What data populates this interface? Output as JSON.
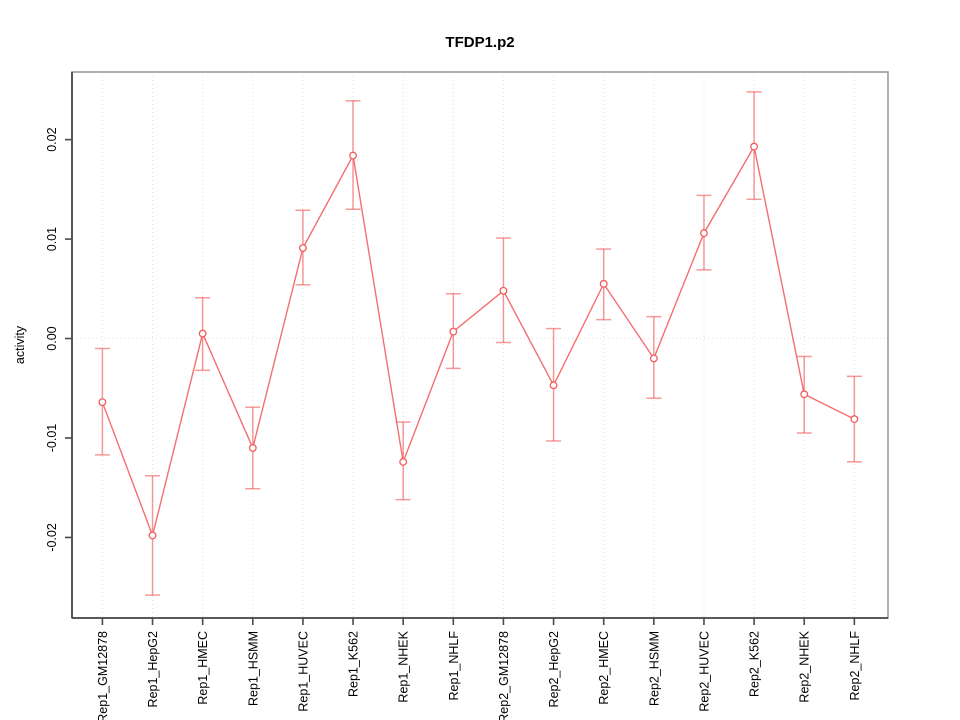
{
  "chart_data": {
    "type": "line",
    "title": "TFDP1.p2",
    "xlabel": "",
    "ylabel": "activity",
    "categories": [
      "Rep1_GM12878",
      "Rep1_HepG2",
      "Rep1_HMEC",
      "Rep1_HSMM",
      "Rep1_HUVEC",
      "Rep1_K562",
      "Rep1_NHEK",
      "Rep1_NHLF",
      "Rep2_GM12878",
      "Rep2_HepG2",
      "Rep2_HMEC",
      "Rep2_HSMM",
      "Rep2_HUVEC",
      "Rep2_K562",
      "Rep2_NHEK",
      "Rep2_NHLF"
    ],
    "values": [
      -0.0064,
      -0.0198,
      0.0005,
      -0.011,
      0.0091,
      0.0184,
      -0.0124,
      0.0007,
      0.0048,
      -0.0047,
      0.0055,
      -0.002,
      0.0106,
      0.0193,
      -0.0056,
      -0.0081
    ],
    "error_upper": [
      -0.001,
      -0.0138,
      0.0041,
      -0.0069,
      0.0129,
      0.0239,
      -0.0084,
      0.0045,
      0.0101,
      0.001,
      0.009,
      0.0022,
      0.0144,
      0.0248,
      -0.0018,
      -0.0038
    ],
    "error_lower": [
      -0.0117,
      -0.0258,
      -0.0032,
      -0.0151,
      0.0054,
      0.013,
      -0.0162,
      -0.003,
      -0.0004,
      -0.0103,
      0.0019,
      -0.006,
      0.0069,
      0.014,
      -0.0095,
      -0.0124
    ],
    "yticks": [
      0.02,
      0.01,
      0,
      -0.01,
      -0.02
    ],
    "ytick_labels": [
      "0.02",
      "0.01",
      "0.00",
      "-0.01",
      "-0.02"
    ],
    "ylim": [
      -0.0281,
      0.0268
    ],
    "series_color": "#f25b5b",
    "marker": "open-circle",
    "error_bars": true,
    "legend": "none",
    "grid": {
      "vertical_dotted_per_category": true,
      "zero_line_dotted": true,
      "color": "#dedede"
    },
    "x_label_rotation_deg": 90,
    "y_label_rotation_deg": 90
  }
}
